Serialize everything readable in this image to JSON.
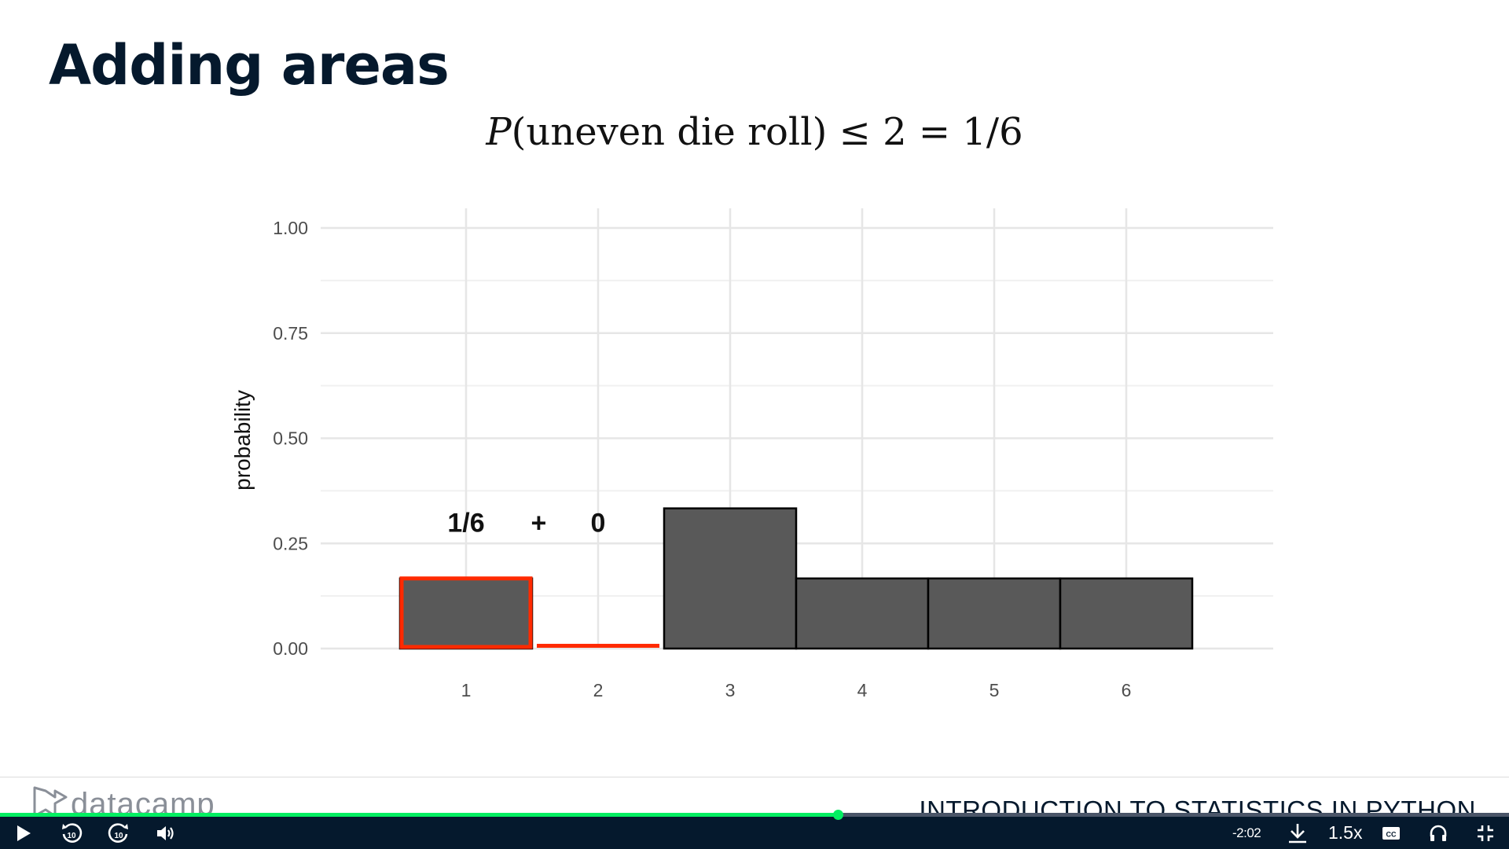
{
  "slide": {
    "title": "Adding areas",
    "formula": {
      "var": "P",
      "body": "(uneven die roll) ≤ 2 = 1/6"
    }
  },
  "chart_data": {
    "type": "bar",
    "categories": [
      "1",
      "2",
      "3",
      "4",
      "5",
      "6"
    ],
    "values": [
      0.1667,
      0,
      0.3333,
      0.1667,
      0.1667,
      0.1667
    ],
    "highlighted": [
      "1",
      "2"
    ],
    "ylabel": "probability",
    "xlabel": "",
    "ylim": [
      0,
      1
    ],
    "yticks": [
      "0.00",
      "0.25",
      "0.50",
      "0.75",
      "1.00"
    ],
    "grid": true,
    "bar_color": "#595959",
    "highlight_color": "#ff2a00",
    "annotations": [
      {
        "text": "1/6",
        "x": "1",
        "y": 0.3
      },
      {
        "text": "+",
        "x": "1.55",
        "y": 0.3
      },
      {
        "text": "0",
        "x": "2",
        "y": 0.3
      }
    ]
  },
  "footer": {
    "brand": "datacamp",
    "course_title": "INTRODUCTION TO STATISTICS IN PYTHON"
  },
  "player": {
    "progress": 0.555,
    "time_remaining": "-2:02",
    "speed": "1.5x",
    "icons": [
      "play-icon",
      "rewind-10-icon",
      "forward-10-icon",
      "volume-icon",
      "download-icon",
      "captions-icon",
      "headphones-icon",
      "exit-fullscreen-icon"
    ],
    "accent": "#03ef62"
  }
}
